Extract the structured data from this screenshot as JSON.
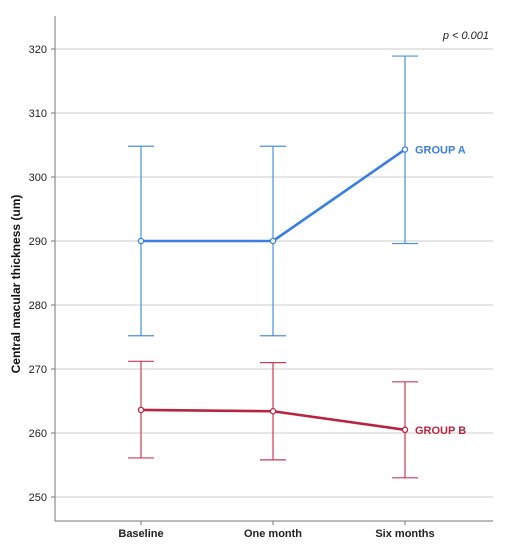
{
  "chart_data": {
    "type": "line",
    "categories": [
      "Baseline",
      "One month",
      "Six months"
    ],
    "ylabel": "Central macular thickness (um)",
    "xlabel": "",
    "ylim": [
      245,
      328
    ],
    "yticks": [
      250,
      260,
      270,
      280,
      290,
      300,
      310,
      320
    ],
    "grid": "horizontal",
    "annotation": "p < 0.001",
    "series": [
      {
        "name": "GROUP A",
        "color": "#3a7fe0",
        "values": [
          290,
          290,
          304.3
        ],
        "error_low": [
          275.2,
          275.2,
          289.6
        ],
        "error_high": [
          304.8,
          304.8,
          318.9
        ]
      },
      {
        "name": "GROUP B",
        "color": "#b8243f",
        "values": [
          263.6,
          263.4,
          260.5
        ],
        "error_low": [
          256.1,
          255.8,
          253
        ],
        "error_high": [
          271.2,
          271
        ],
        "error_high_six_months": 268
      }
    ]
  }
}
